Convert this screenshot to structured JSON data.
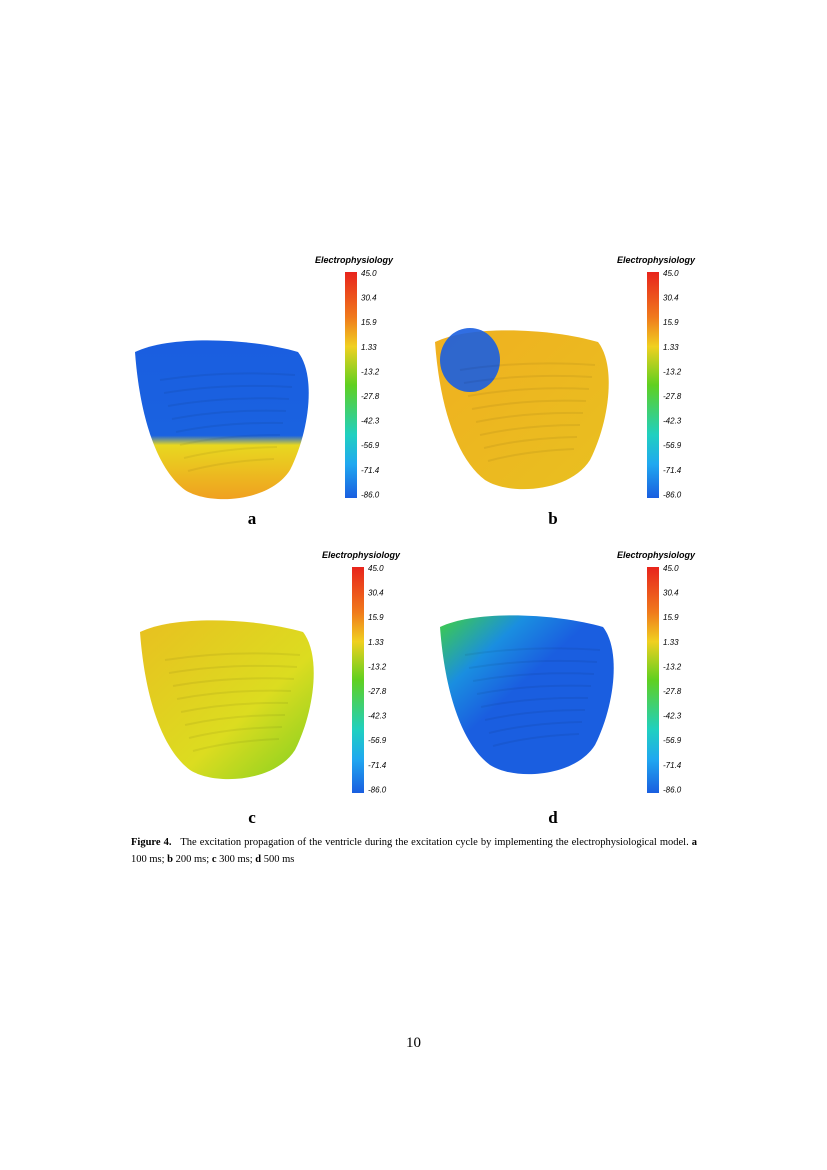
{
  "figure": {
    "colorbar": {
      "title": "Electrophysiology",
      "ticks": [
        "45.0",
        "30.4",
        "15.9",
        "1.33",
        "-13.2",
        "-27.8",
        "-42.3",
        "-56.9",
        "-71.4",
        "-86.0"
      ]
    },
    "panels": [
      {
        "label": "a"
      },
      {
        "label": "b"
      },
      {
        "label": "c"
      },
      {
        "label": "d"
      }
    ]
  },
  "caption": {
    "label": "Figure 4.",
    "text": "The excitation propagation of the ventricle during the excitation cycle by implementing the electrophysiological model.",
    "items": [
      {
        "key": "a",
        "text": "100 ms;"
      },
      {
        "key": "b",
        "text": "200 ms;"
      },
      {
        "key": "c",
        "text": "300 ms;"
      },
      {
        "key": "d",
        "text": "500 ms"
      }
    ]
  },
  "page_number": "10"
}
